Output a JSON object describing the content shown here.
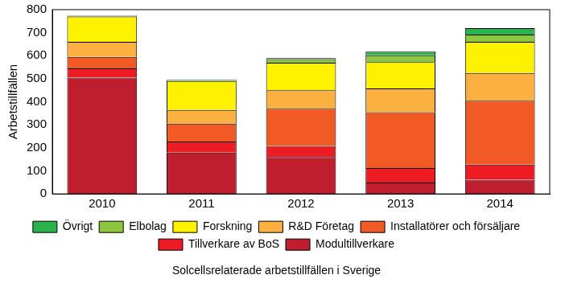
{
  "chart_data": {
    "type": "bar",
    "stacked": true,
    "grid": false,
    "legend": "bottom",
    "x_label": "Solcellsrelaterade arbetstillfällen i Sverige",
    "y_label": "Arbetstillfällen",
    "categories": [
      "2010",
      "2011",
      "2012",
      "2013",
      "2014"
    ],
    "ylim": [
      0,
      800
    ],
    "yticks": [
      0,
      100,
      200,
      300,
      400,
      500,
      600,
      700,
      800
    ],
    "series": [
      {
        "name": "Modultillverkare",
        "color": "#be1e2d",
        "values": [
          505,
          180,
          160,
          50,
          62
        ]
      },
      {
        "name": "Tillverkare av BoS",
        "color": "#ed1c24",
        "values": [
          40,
          48,
          48,
          62,
          65
        ]
      },
      {
        "name": "Installatörer och försäljare",
        "color": "#f15a24",
        "values": [
          50,
          77,
          162,
          243,
          278
        ]
      },
      {
        "name": "R&D Företag",
        "color": "#fbb040",
        "values": [
          65,
          60,
          80,
          103,
          120
        ]
      },
      {
        "name": "Forskning",
        "color": "#fff200",
        "values": [
          110,
          125,
          120,
          114,
          135
        ]
      },
      {
        "name": "Elbolag",
        "color": "#8dc63f",
        "values": [
          3,
          5,
          15,
          30,
          32
        ]
      },
      {
        "name": "Övrigt",
        "color": "#2bb24c",
        "values": [
          2,
          2,
          5,
          16,
          28
        ]
      }
    ]
  }
}
